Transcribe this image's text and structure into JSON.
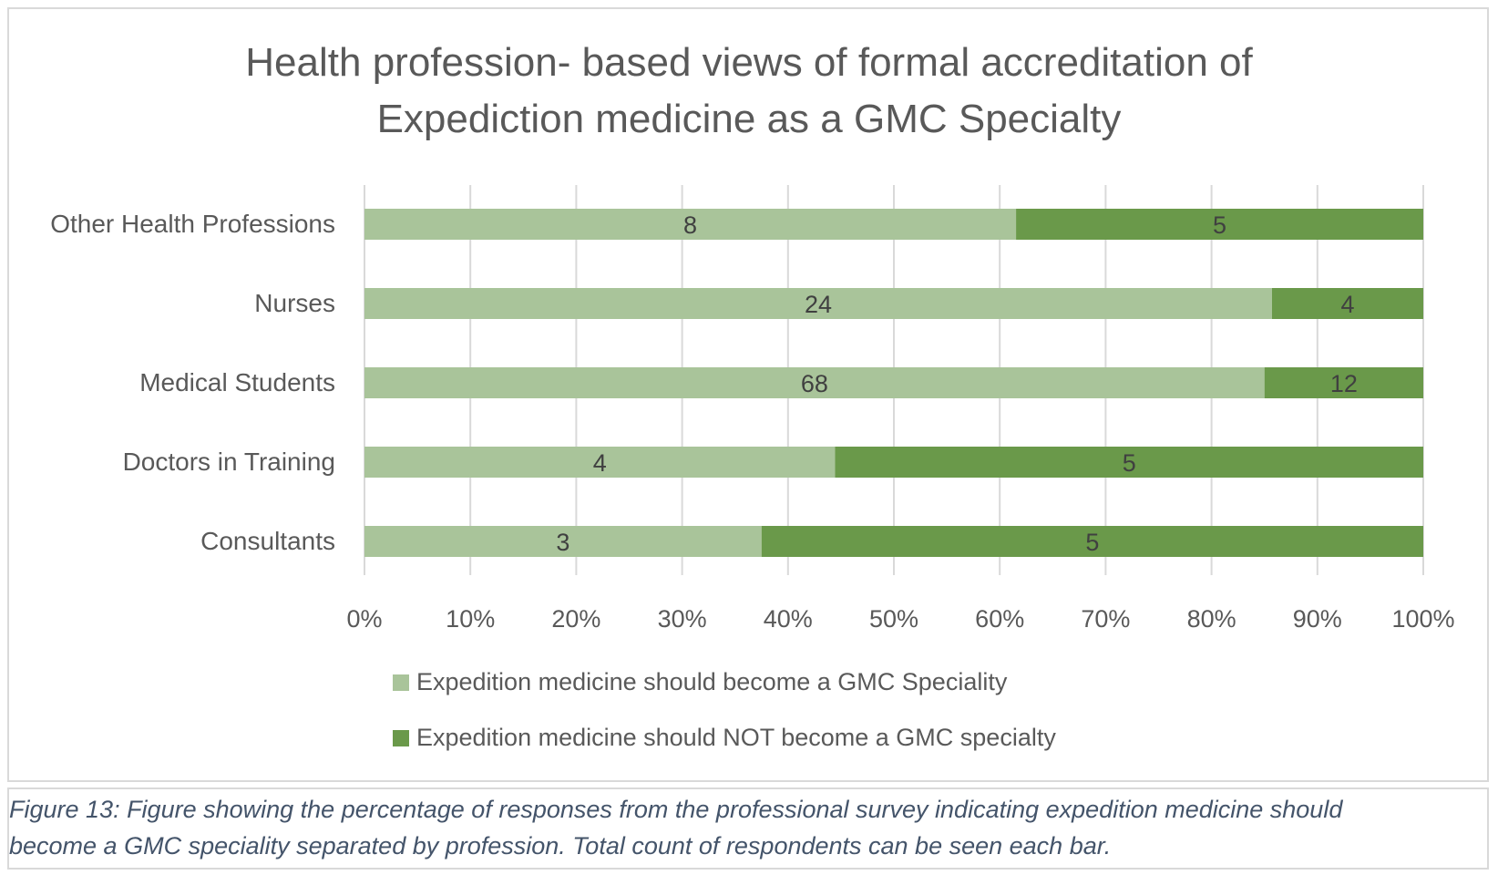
{
  "chart_data": {
    "type": "bar",
    "orientation": "horizontal",
    "stacked": "percent",
    "title_lines": [
      "Health profession- based views of formal accreditation of",
      "Expediction medicine as a GMC Specialty"
    ],
    "categories": [
      "Other Health Professions",
      "Nurses",
      "Medical Students",
      "Doctors in Training",
      "Consultants"
    ],
    "series": [
      {
        "name": "Expedition medicine should become a GMC Speciality",
        "color": "#a9c49a",
        "values": [
          8,
          24,
          68,
          4,
          3
        ]
      },
      {
        "name": "Expedition medicine should NOT become a GMC specialty",
        "color": "#6a994a",
        "values": [
          5,
          4,
          12,
          5,
          5
        ]
      }
    ],
    "x_ticks": [
      "0%",
      "10%",
      "20%",
      "30%",
      "40%",
      "50%",
      "60%",
      "70%",
      "80%",
      "90%",
      "100%"
    ],
    "xlim": [
      0,
      100
    ],
    "grid": "vertical",
    "legend_position": "bottom"
  },
  "caption": {
    "line1": "Figure 13: Figure showing the percentage of responses from the professional survey indicating expedition medicine should",
    "line2": "become a GMC speciality separated by profession. Total count of respondents can be seen each bar."
  },
  "colors": {
    "title": "#595959",
    "axis_text": "#595959",
    "grid": "#d9d9d9",
    "label_text": "#404040",
    "caption": "#44546a"
  }
}
